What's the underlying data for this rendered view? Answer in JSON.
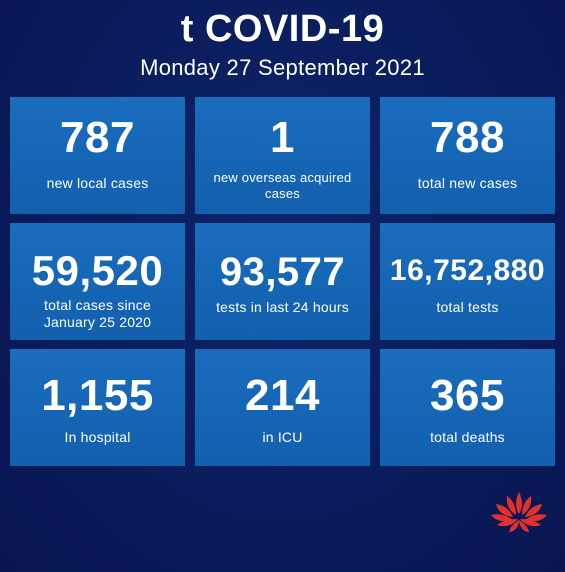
{
  "header": {
    "title": "t COVID-19",
    "date": "Monday 27 September 2021"
  },
  "tiles": [
    {
      "value": "787",
      "label": "new local cases"
    },
    {
      "value": "1",
      "label_line1": "new overseas acquired",
      "label_line2": "cases"
    },
    {
      "value": "788",
      "label": "total new cases"
    },
    {
      "value": "59,520",
      "label_line1": "total cases since",
      "label_line2": "January 25 2020"
    },
    {
      "value": "93,577",
      "label": "tests in last 24 hours"
    },
    {
      "value": "16,752,880",
      "label": "total tests"
    },
    {
      "value": "1,155",
      "label": "In hospital"
    },
    {
      "value": "214",
      "label": "in ICU"
    },
    {
      "value": "365",
      "label": "total deaths"
    }
  ],
  "colors": {
    "background": "#0a1c5c",
    "tile": "#1466b8",
    "logo": "#e0312e"
  },
  "logo": {
    "icon": "waratah-logo-icon"
  }
}
